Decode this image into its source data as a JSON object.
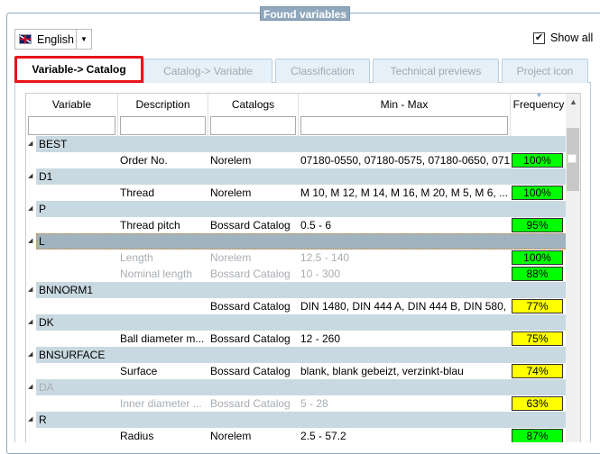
{
  "group_title": "Found variables",
  "language": {
    "value": "English",
    "icon": "uk-flag-icon"
  },
  "show_all": {
    "label": "Show all",
    "checked": true
  },
  "tabs": [
    {
      "label": "Variable-> Catalog",
      "active": true
    },
    {
      "label": "Catalog-> Variable"
    },
    {
      "label": "Classification"
    },
    {
      "label": "Technical previews"
    },
    {
      "label": "Project icon"
    }
  ],
  "columns": [
    "Variable",
    "Description",
    "Catalogs",
    "Min - Max",
    "Frequency"
  ],
  "colors": {
    "high": "#00ff00",
    "medium": "#ffff00",
    "group_band": "#c9d9e1",
    "selected_band": "#a0b4c0",
    "tab_highlight": "#e8141a"
  },
  "groups": [
    {
      "name": "BEST",
      "items": [
        {
          "description": "Order No.",
          "catalog": "Norelem",
          "minmax": "07180-0550, 07180-0575, 07180-0650, 071...",
          "frequency": "100%",
          "level": "high"
        }
      ]
    },
    {
      "name": "D1",
      "items": [
        {
          "description": "Thread",
          "catalog": "Norelem",
          "minmax": "M 10, M 12, M 14, M 16, M 20, M 5, M 6, ...",
          "frequency": "100%",
          "level": "high"
        }
      ]
    },
    {
      "name": "P",
      "items": [
        {
          "description": "Thread pitch",
          "catalog": "Bossard Catalog",
          "minmax": "0.5 - 6",
          "frequency": "95%",
          "level": "high"
        }
      ]
    },
    {
      "name": "L",
      "selected": true,
      "items": [
        {
          "description": "Length",
          "catalog": "Norelem",
          "minmax": "12.5 - 140",
          "frequency": "100%",
          "level": "high",
          "dim": true
        },
        {
          "description": "Nominal length",
          "catalog": "Bossard Catalog",
          "minmax": "10 - 300",
          "frequency": "88%",
          "level": "high",
          "dim": true
        }
      ]
    },
    {
      "name": "BNNORM1",
      "items": [
        {
          "description": "",
          "catalog": "Bossard Catalog",
          "minmax": "DIN 1480, DIN 444 A, DIN 444 B, DIN 580, ...",
          "frequency": "77%",
          "level": "medium"
        }
      ]
    },
    {
      "name": "DK",
      "items": [
        {
          "description": "Ball diameter m...",
          "catalog": "Bossard Catalog",
          "minmax": "12 - 260",
          "frequency": "75%",
          "level": "medium"
        }
      ]
    },
    {
      "name": "BNSURFACE",
      "items": [
        {
          "description": "Surface",
          "catalog": "Bossard Catalog",
          "minmax": "blank, blank gebeizt, verzinkt-blau",
          "frequency": "74%",
          "level": "medium"
        }
      ]
    },
    {
      "name": "DA",
      "dim": true,
      "items": [
        {
          "description": "Inner diameter ...",
          "catalog": "Bossard Catalog",
          "minmax": "5 - 28",
          "frequency": "63%",
          "level": "medium",
          "dim": true
        }
      ]
    },
    {
      "name": "R",
      "items": [
        {
          "description": "Radius",
          "catalog": "Norelem",
          "minmax": "2.5 - 57.2",
          "frequency": "87%",
          "level": "high"
        }
      ]
    }
  ]
}
